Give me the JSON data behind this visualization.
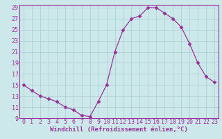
{
  "x": [
    0,
    1,
    2,
    3,
    4,
    5,
    6,
    7,
    8,
    9,
    10,
    11,
    12,
    13,
    14,
    15,
    16,
    17,
    18,
    19,
    20,
    21,
    22,
    23
  ],
  "y": [
    15,
    14,
    13,
    12.5,
    12,
    11,
    10.5,
    9.5,
    9.3,
    12,
    15,
    21,
    25,
    27,
    27.5,
    29,
    29,
    28,
    27,
    25.5,
    22.5,
    19,
    16.5,
    15.5
  ],
  "line_color": "#993399",
  "marker": "D",
  "marker_size": 2.5,
  "bg_color": "#cce8eb",
  "grid_color": "#b0d0d8",
  "xlabel": "Windchill (Refroidissement éolien,°C)",
  "ylim": [
    9,
    29
  ],
  "xlim": [
    0,
    23
  ],
  "yticks": [
    9,
    11,
    13,
    15,
    17,
    19,
    21,
    23,
    25,
    27,
    29
  ],
  "xticks": [
    0,
    1,
    2,
    3,
    4,
    5,
    6,
    7,
    8,
    9,
    10,
    11,
    12,
    13,
    14,
    15,
    16,
    17,
    18,
    19,
    20,
    21,
    22,
    23
  ],
  "label_fontsize": 6.5,
  "tick_fontsize": 6
}
